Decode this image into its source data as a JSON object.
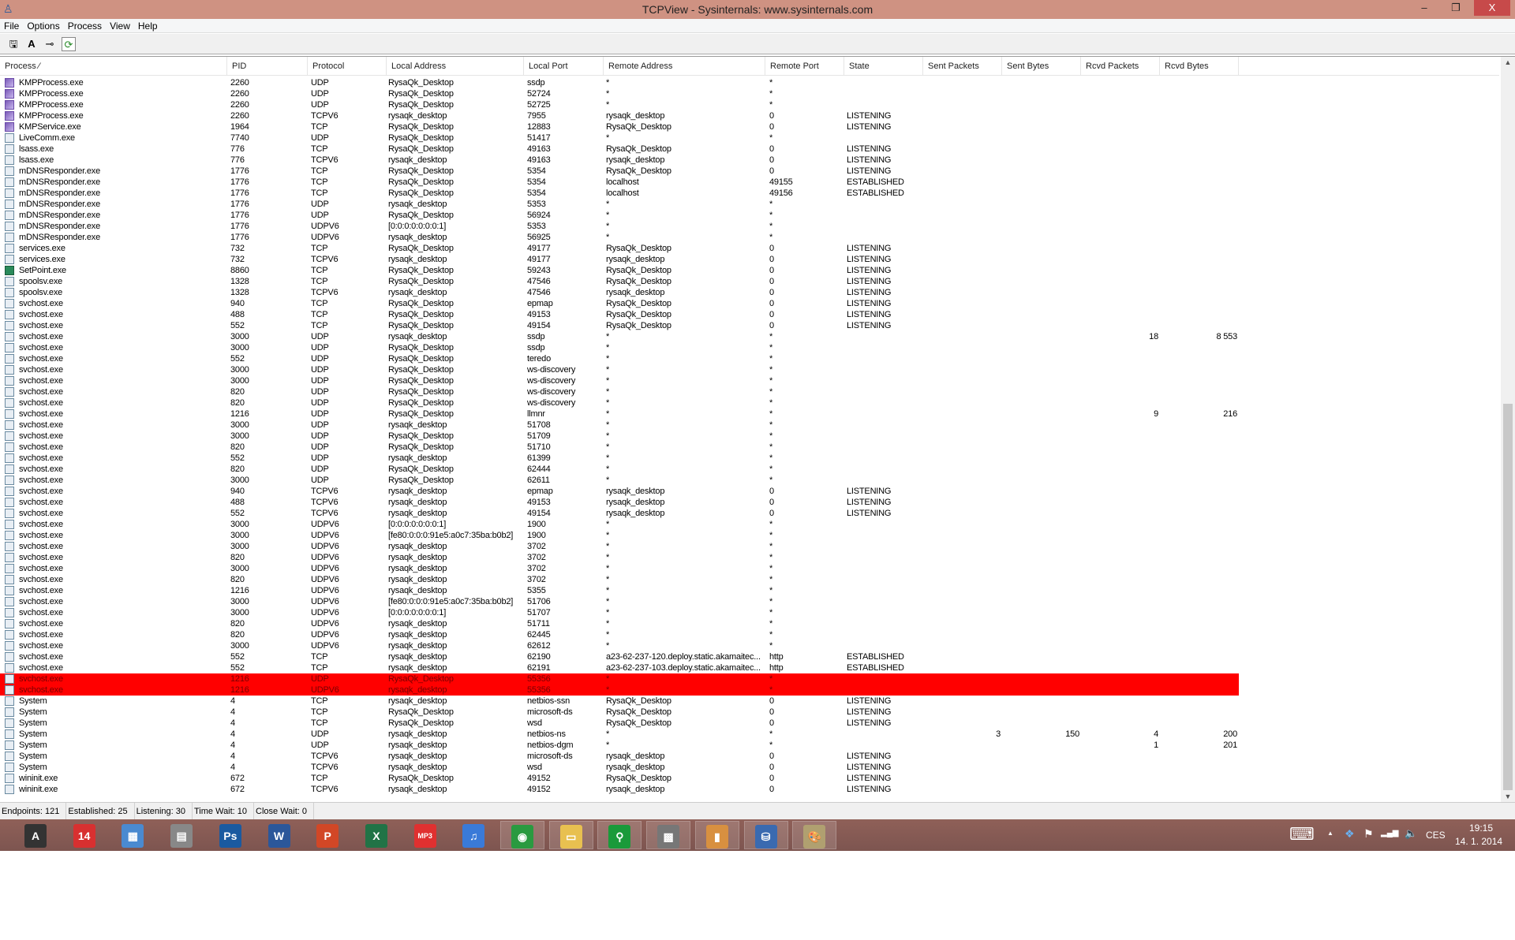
{
  "window": {
    "title": "TCPView - Sysinternals: www.sysinternals.com",
    "minimize": "–",
    "restore": "❐",
    "close": "X"
  },
  "menu": [
    "File",
    "Options",
    "Process",
    "View",
    "Help"
  ],
  "toolbar": [
    {
      "icon": "save-icon",
      "glyph": "🖫"
    },
    {
      "icon": "font-icon",
      "glyph": "A"
    },
    {
      "icon": "resolve-addresses-icon",
      "glyph": "⊸"
    },
    {
      "icon": "refresh-icon",
      "glyph": "⟳"
    }
  ],
  "columns": [
    "Process  ⁄",
    "PID",
    "Protocol",
    "Local Address",
    "Local Port",
    "Remote Address",
    "Remote Port",
    "State",
    "Sent Packets",
    "Sent Bytes",
    "Rcvd Packets",
    "Rcvd Bytes"
  ],
  "colors": {
    "highlight": "#ff0000",
    "titlebar": "#cf9282",
    "taskbar": "#8a5a55"
  },
  "rows": [
    [
      "kmp",
      "KMPProcess.exe",
      "2260",
      "UDP",
      "RysaQk_Desktop",
      "ssdp",
      "*",
      "*",
      "",
      "",
      "",
      "",
      ""
    ],
    [
      "kmp",
      "KMPProcess.exe",
      "2260",
      "UDP",
      "RysaQk_Desktop",
      "52724",
      "*",
      "*",
      "",
      "",
      "",
      "",
      ""
    ],
    [
      "kmp",
      "KMPProcess.exe",
      "2260",
      "UDP",
      "RysaQk_Desktop",
      "52725",
      "*",
      "*",
      "",
      "",
      "",
      "",
      ""
    ],
    [
      "kmp",
      "KMPProcess.exe",
      "2260",
      "TCPV6",
      "rysaqk_desktop",
      "7955",
      "rysaqk_desktop",
      "0",
      "LISTENING",
      "",
      "",
      "",
      ""
    ],
    [
      "kmp",
      "KMPService.exe",
      "1964",
      "TCP",
      "RysaQk_Desktop",
      "12883",
      "RysaQk_Desktop",
      "0",
      "LISTENING",
      "",
      "",
      "",
      ""
    ],
    [
      "app",
      "LiveComm.exe",
      "7740",
      "UDP",
      "RysaQk_Desktop",
      "51417",
      "*",
      "*",
      "",
      "",
      "",
      "",
      ""
    ],
    [
      "app",
      "lsass.exe",
      "776",
      "TCP",
      "RysaQk_Desktop",
      "49163",
      "RysaQk_Desktop",
      "0",
      "LISTENING",
      "",
      "",
      "",
      ""
    ],
    [
      "app",
      "lsass.exe",
      "776",
      "TCPV6",
      "rysaqk_desktop",
      "49163",
      "rysaqk_desktop",
      "0",
      "LISTENING",
      "",
      "",
      "",
      ""
    ],
    [
      "app",
      "mDNSResponder.exe",
      "1776",
      "TCP",
      "RysaQk_Desktop",
      "5354",
      "RysaQk_Desktop",
      "0",
      "LISTENING",
      "",
      "",
      "",
      ""
    ],
    [
      "app",
      "mDNSResponder.exe",
      "1776",
      "TCP",
      "RysaQk_Desktop",
      "5354",
      "localhost",
      "49155",
      "ESTABLISHED",
      "",
      "",
      "",
      ""
    ],
    [
      "app",
      "mDNSResponder.exe",
      "1776",
      "TCP",
      "RysaQk_Desktop",
      "5354",
      "localhost",
      "49156",
      "ESTABLISHED",
      "",
      "",
      "",
      ""
    ],
    [
      "app",
      "mDNSResponder.exe",
      "1776",
      "UDP",
      "rysaqk_desktop",
      "5353",
      "*",
      "*",
      "",
      "",
      "",
      "",
      ""
    ],
    [
      "app",
      "mDNSResponder.exe",
      "1776",
      "UDP",
      "RysaQk_Desktop",
      "56924",
      "*",
      "*",
      "",
      "",
      "",
      "",
      ""
    ],
    [
      "app",
      "mDNSResponder.exe",
      "1776",
      "UDPV6",
      "[0:0:0:0:0:0:0:1]",
      "5353",
      "*",
      "*",
      "",
      "",
      "",
      "",
      ""
    ],
    [
      "app",
      "mDNSResponder.exe",
      "1776",
      "UDPV6",
      "rysaqk_desktop",
      "56925",
      "*",
      "*",
      "",
      "",
      "",
      "",
      ""
    ],
    [
      "app",
      "services.exe",
      "732",
      "TCP",
      "RysaQk_Desktop",
      "49177",
      "RysaQk_Desktop",
      "0",
      "LISTENING",
      "",
      "",
      "",
      ""
    ],
    [
      "app",
      "services.exe",
      "732",
      "TCPV6",
      "rysaqk_desktop",
      "49177",
      "rysaqk_desktop",
      "0",
      "LISTENING",
      "",
      "",
      "",
      ""
    ],
    [
      "sp",
      "SetPoint.exe",
      "8860",
      "TCP",
      "RysaQk_Desktop",
      "59243",
      "RysaQk_Desktop",
      "0",
      "LISTENING",
      "",
      "",
      "",
      ""
    ],
    [
      "app",
      "spoolsv.exe",
      "1328",
      "TCP",
      "RysaQk_Desktop",
      "47546",
      "RysaQk_Desktop",
      "0",
      "LISTENING",
      "",
      "",
      "",
      ""
    ],
    [
      "app",
      "spoolsv.exe",
      "1328",
      "TCPV6",
      "rysaqk_desktop",
      "47546",
      "rysaqk_desktop",
      "0",
      "LISTENING",
      "",
      "",
      "",
      ""
    ],
    [
      "app",
      "svchost.exe",
      "940",
      "TCP",
      "RysaQk_Desktop",
      "epmap",
      "RysaQk_Desktop",
      "0",
      "LISTENING",
      "",
      "",
      "",
      ""
    ],
    [
      "app",
      "svchost.exe",
      "488",
      "TCP",
      "RysaQk_Desktop",
      "49153",
      "RysaQk_Desktop",
      "0",
      "LISTENING",
      "",
      "",
      "",
      ""
    ],
    [
      "app",
      "svchost.exe",
      "552",
      "TCP",
      "RysaQk_Desktop",
      "49154",
      "RysaQk_Desktop",
      "0",
      "LISTENING",
      "",
      "",
      "",
      ""
    ],
    [
      "app",
      "svchost.exe",
      "3000",
      "UDP",
      "rysaqk_desktop",
      "ssdp",
      "*",
      "*",
      "",
      "",
      "",
      "18",
      "8 553"
    ],
    [
      "app",
      "svchost.exe",
      "3000",
      "UDP",
      "RysaQk_Desktop",
      "ssdp",
      "*",
      "*",
      "",
      "",
      "",
      "",
      ""
    ],
    [
      "app",
      "svchost.exe",
      "552",
      "UDP",
      "RysaQk_Desktop",
      "teredo",
      "*",
      "*",
      "",
      "",
      "",
      "",
      ""
    ],
    [
      "app",
      "svchost.exe",
      "3000",
      "UDP",
      "RysaQk_Desktop",
      "ws-discovery",
      "*",
      "*",
      "",
      "",
      "",
      "",
      ""
    ],
    [
      "app",
      "svchost.exe",
      "3000",
      "UDP",
      "RysaQk_Desktop",
      "ws-discovery",
      "*",
      "*",
      "",
      "",
      "",
      "",
      ""
    ],
    [
      "app",
      "svchost.exe",
      "820",
      "UDP",
      "RysaQk_Desktop",
      "ws-discovery",
      "*",
      "*",
      "",
      "",
      "",
      "",
      ""
    ],
    [
      "app",
      "svchost.exe",
      "820",
      "UDP",
      "RysaQk_Desktop",
      "ws-discovery",
      "*",
      "*",
      "",
      "",
      "",
      "",
      ""
    ],
    [
      "app",
      "svchost.exe",
      "1216",
      "UDP",
      "RysaQk_Desktop",
      "llmnr",
      "*",
      "*",
      "",
      "",
      "",
      "9",
      "216"
    ],
    [
      "app",
      "svchost.exe",
      "3000",
      "UDP",
      "rysaqk_desktop",
      "51708",
      "*",
      "*",
      "",
      "",
      "",
      "",
      ""
    ],
    [
      "app",
      "svchost.exe",
      "3000",
      "UDP",
      "RysaQk_Desktop",
      "51709",
      "*",
      "*",
      "",
      "",
      "",
      "",
      ""
    ],
    [
      "app",
      "svchost.exe",
      "820",
      "UDP",
      "RysaQk_Desktop",
      "51710",
      "*",
      "*",
      "",
      "",
      "",
      "",
      ""
    ],
    [
      "app",
      "svchost.exe",
      "552",
      "UDP",
      "rysaqk_desktop",
      "61399",
      "*",
      "*",
      "",
      "",
      "",
      "",
      ""
    ],
    [
      "app",
      "svchost.exe",
      "820",
      "UDP",
      "RysaQk_Desktop",
      "62444",
      "*",
      "*",
      "",
      "",
      "",
      "",
      ""
    ],
    [
      "app",
      "svchost.exe",
      "3000",
      "UDP",
      "RysaQk_Desktop",
      "62611",
      "*",
      "*",
      "",
      "",
      "",
      "",
      ""
    ],
    [
      "app",
      "svchost.exe",
      "940",
      "TCPV6",
      "rysaqk_desktop",
      "epmap",
      "rysaqk_desktop",
      "0",
      "LISTENING",
      "",
      "",
      "",
      ""
    ],
    [
      "app",
      "svchost.exe",
      "488",
      "TCPV6",
      "rysaqk_desktop",
      "49153",
      "rysaqk_desktop",
      "0",
      "LISTENING",
      "",
      "",
      "",
      ""
    ],
    [
      "app",
      "svchost.exe",
      "552",
      "TCPV6",
      "rysaqk_desktop",
      "49154",
      "rysaqk_desktop",
      "0",
      "LISTENING",
      "",
      "",
      "",
      ""
    ],
    [
      "app",
      "svchost.exe",
      "3000",
      "UDPV6",
      "[0:0:0:0:0:0:0:1]",
      "1900",
      "*",
      "*",
      "",
      "",
      "",
      "",
      ""
    ],
    [
      "app",
      "svchost.exe",
      "3000",
      "UDPV6",
      "[fe80:0:0:0:91e5:a0c7:35ba:b0b2]",
      "1900",
      "*",
      "*",
      "",
      "",
      "",
      "",
      ""
    ],
    [
      "app",
      "svchost.exe",
      "3000",
      "UDPV6",
      "rysaqk_desktop",
      "3702",
      "*",
      "*",
      "",
      "",
      "",
      "",
      ""
    ],
    [
      "app",
      "svchost.exe",
      "820",
      "UDPV6",
      "rysaqk_desktop",
      "3702",
      "*",
      "*",
      "",
      "",
      "",
      "",
      ""
    ],
    [
      "app",
      "svchost.exe",
      "3000",
      "UDPV6",
      "rysaqk_desktop",
      "3702",
      "*",
      "*",
      "",
      "",
      "",
      "",
      ""
    ],
    [
      "app",
      "svchost.exe",
      "820",
      "UDPV6",
      "rysaqk_desktop",
      "3702",
      "*",
      "*",
      "",
      "",
      "",
      "",
      ""
    ],
    [
      "app",
      "svchost.exe",
      "1216",
      "UDPV6",
      "rysaqk_desktop",
      "5355",
      "*",
      "*",
      "",
      "",
      "",
      "",
      ""
    ],
    [
      "app",
      "svchost.exe",
      "3000",
      "UDPV6",
      "[fe80:0:0:0:91e5:a0c7:35ba:b0b2]",
      "51706",
      "*",
      "*",
      "",
      "",
      "",
      "",
      ""
    ],
    [
      "app",
      "svchost.exe",
      "3000",
      "UDPV6",
      "[0:0:0:0:0:0:0:1]",
      "51707",
      "*",
      "*",
      "",
      "",
      "",
      "",
      ""
    ],
    [
      "app",
      "svchost.exe",
      "820",
      "UDPV6",
      "rysaqk_desktop",
      "51711",
      "*",
      "*",
      "",
      "",
      "",
      "",
      ""
    ],
    [
      "app",
      "svchost.exe",
      "820",
      "UDPV6",
      "rysaqk_desktop",
      "62445",
      "*",
      "*",
      "",
      "",
      "",
      "",
      ""
    ],
    [
      "app",
      "svchost.exe",
      "3000",
      "UDPV6",
      "rysaqk_desktop",
      "62612",
      "*",
      "*",
      "",
      "",
      "",
      "",
      ""
    ],
    [
      "app",
      "svchost.exe",
      "552",
      "TCP",
      "rysaqk_desktop",
      "62190",
      "a23-62-237-120.deploy.static.akamaitec...",
      "http",
      "ESTABLISHED",
      "",
      "",
      "",
      ""
    ],
    [
      "app",
      "svchost.exe",
      "552",
      "TCP",
      "rysaqk_desktop",
      "62191",
      "a23-62-237-103.deploy.static.akamaitec...",
      "http",
      "ESTABLISHED",
      "",
      "",
      "",
      ""
    ],
    [
      "app-hl",
      "svchost.exe",
      "1216",
      "UDP",
      "RysaQk_Desktop",
      "55356",
      "*",
      "*",
      "",
      "",
      "",
      "",
      ""
    ],
    [
      "app-hl",
      "svchost.exe",
      "1216",
      "UDPV6",
      "rysaqk_desktop",
      "55356",
      "*",
      "*",
      "",
      "",
      "",
      "",
      ""
    ],
    [
      "app",
      "System",
      "4",
      "TCP",
      "rysaqk_desktop",
      "netbios-ssn",
      "RysaQk_Desktop",
      "0",
      "LISTENING",
      "",
      "",
      "",
      ""
    ],
    [
      "app",
      "System",
      "4",
      "TCP",
      "RysaQk_Desktop",
      "microsoft-ds",
      "RysaQk_Desktop",
      "0",
      "LISTENING",
      "",
      "",
      "",
      ""
    ],
    [
      "app",
      "System",
      "4",
      "TCP",
      "RysaQk_Desktop",
      "wsd",
      "RysaQk_Desktop",
      "0",
      "LISTENING",
      "",
      "",
      "",
      ""
    ],
    [
      "app",
      "System",
      "4",
      "UDP",
      "rysaqk_desktop",
      "netbios-ns",
      "*",
      "*",
      "",
      "3",
      "150",
      "4",
      "200"
    ],
    [
      "app",
      "System",
      "4",
      "UDP",
      "rysaqk_desktop",
      "netbios-dgm",
      "*",
      "*",
      "",
      "",
      "",
      "1",
      "201"
    ],
    [
      "app",
      "System",
      "4",
      "TCPV6",
      "rysaqk_desktop",
      "microsoft-ds",
      "rysaqk_desktop",
      "0",
      "LISTENING",
      "",
      "",
      "",
      ""
    ],
    [
      "app",
      "System",
      "4",
      "TCPV6",
      "rysaqk_desktop",
      "wsd",
      "rysaqk_desktop",
      "0",
      "LISTENING",
      "",
      "",
      "",
      ""
    ],
    [
      "app",
      "wininit.exe",
      "672",
      "TCP",
      "RysaQk_Desktop",
      "49152",
      "RysaQk_Desktop",
      "0",
      "LISTENING",
      "",
      "",
      "",
      ""
    ],
    [
      "app",
      "wininit.exe",
      "672",
      "TCPV6",
      "rysaqk_desktop",
      "49152",
      "rysaqk_desktop",
      "0",
      "LISTENING",
      "",
      "",
      "",
      ""
    ]
  ],
  "status": {
    "endpoints": "Endpoints: 121",
    "established": "Established: 25",
    "listening": "Listening: 30",
    "time_wait": "Time Wait: 10",
    "close_wait": "Close Wait: 0"
  },
  "taskbar": [
    {
      "icon": "assassins-creed-icon",
      "glyph": "A",
      "color": "#333"
    },
    {
      "icon": "badge-14-icon",
      "glyph": "14",
      "color": "#d83030"
    },
    {
      "icon": "control-panel-icon",
      "glyph": "▦",
      "color": "#4a8ad0"
    },
    {
      "icon": "scanner-icon",
      "glyph": "▤",
      "color": "#888"
    },
    {
      "icon": "photoshop-icon",
      "glyph": "Ps",
      "color": "#1a5aa0"
    },
    {
      "icon": "word-icon",
      "glyph": "W",
      "color": "#2b579a"
    },
    {
      "icon": "powerpoint-icon",
      "glyph": "P",
      "color": "#d24726"
    },
    {
      "icon": "excel-icon",
      "glyph": "X",
      "color": "#217346"
    },
    {
      "icon": "mp3-icon",
      "glyph": "MP3",
      "color": "#e03030"
    },
    {
      "icon": "itunes-icon",
      "glyph": "♫",
      "color": "#3a7ad8"
    },
    {
      "icon": "chrome-icon",
      "glyph": "◉",
      "color": "#2a9a40"
    },
    {
      "icon": "file-explorer-icon",
      "glyph": "▭",
      "color": "#e8c050"
    },
    {
      "icon": "search-app-icon",
      "glyph": "⚲",
      "color": "#1a9a3a"
    },
    {
      "icon": "grid-app-icon",
      "glyph": "▩",
      "color": "#777"
    },
    {
      "icon": "archive-icon",
      "glyph": "▮",
      "color": "#d89040"
    },
    {
      "icon": "tcpview-icon",
      "glyph": "⛁",
      "color": "#3a6ab0"
    },
    {
      "icon": "paint-icon",
      "glyph": "🎨",
      "color": "#b0a070"
    }
  ],
  "tray": {
    "keyboard": "⌨",
    "show_hidden": "▲",
    "dropbox": "❖",
    "flag": "⚑",
    "signal": "▂▄▆",
    "volume": "🔈",
    "language": "CES",
    "time": "19:15",
    "date": "14. 1. 2014"
  }
}
